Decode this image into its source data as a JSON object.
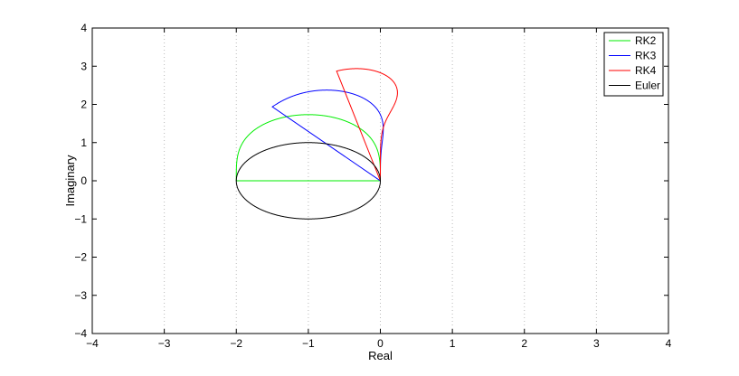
{
  "chart_data": {
    "type": "line",
    "title": "",
    "xlabel": "Real",
    "ylabel": "Imaginary",
    "xlim": [
      -4,
      4
    ],
    "ylim": [
      -4,
      4
    ],
    "xticks": [
      -4,
      -3,
      -2,
      -1,
      0,
      1,
      2,
      3,
      4
    ],
    "yticks": [
      -4,
      -3,
      -2,
      -1,
      0,
      1,
      2,
      3,
      4
    ],
    "tick_labels_x": [
      "−4",
      "−3",
      "−2",
      "−1",
      "0",
      "1",
      "2",
      "3",
      "4"
    ],
    "tick_labels_y": [
      "−4",
      "−3",
      "−2",
      "−1",
      "0",
      "1",
      "2",
      "3",
      "4"
    ],
    "grid": "vertical dotted",
    "legend_position": "top-right",
    "series": [
      {
        "name": "RK2",
        "color": "#00ee00",
        "order": 2,
        "description": "stability boundary |1+z+z^2/2| = 1"
      },
      {
        "name": "RK3",
        "color": "#0000ff",
        "order": 3,
        "description": "stability boundary |1+z+z^2/2+z^3/6| = 1"
      },
      {
        "name": "RK4",
        "color": "#ff0000",
        "order": 4,
        "description": "stability boundary |1+z+z^2/2+z^3/6+z^4/24| = 1"
      },
      {
        "name": "Euler",
        "color": "#000000",
        "order": 1,
        "description": "stability boundary |1+z| = 1"
      }
    ]
  }
}
